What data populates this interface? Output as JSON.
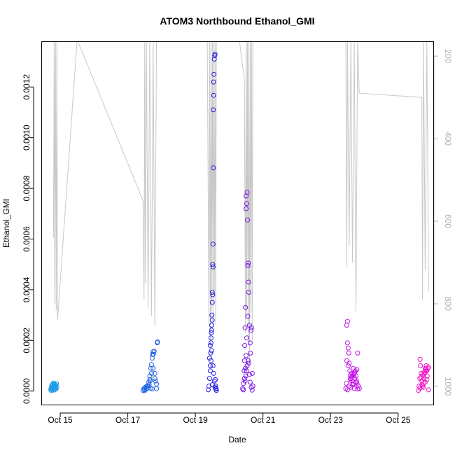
{
  "chart_data": {
    "type": "scatter",
    "title": "ATOM3 Northbound Ethanol_GMI",
    "xlabel": "Date",
    "ylabel": "Ethanol_GMI",
    "xlim": [
      14.45,
      26.05
    ],
    "ylim": [
      -5.47e-05,
      0.001379
    ],
    "y2lim": [
      1045,
      165
    ],
    "x_ticks": [
      15,
      17,
      19,
      21,
      23,
      25
    ],
    "x_tick_labels": [
      "Oct 15",
      "Oct 17",
      "Oct 19",
      "Oct 21",
      "Oct 23",
      "Oct 25"
    ],
    "y_ticks": [
      0,
      0.0002,
      0.0004,
      0.0006,
      0.0008,
      0.001,
      0.0012
    ],
    "y_tick_labels": [
      "0.0000",
      "0.0002",
      "0.0004",
      "0.0006",
      "0.0008",
      "0.0010",
      "0.0012"
    ],
    "y2_ticks": [
      200,
      400,
      600,
      800,
      1000
    ],
    "y2_tick_labels": [
      "200",
      "400",
      "600",
      "800",
      "1000"
    ],
    "colors": {
      "line": "#c8c8c8",
      "axis": "#000000",
      "right_axis": "#b0b0b0"
    },
    "pressure_trace": {
      "x": [
        14.8,
        14.82,
        14.84,
        14.86,
        14.88,
        14.9,
        14.92,
        15.5,
        17.45,
        17.48,
        17.5,
        17.52,
        17.55,
        17.6,
        17.65,
        17.7,
        17.75,
        17.8,
        17.85,
        19.35,
        19.4,
        19.42,
        19.44,
        19.46,
        19.48,
        19.5,
        19.52,
        19.54,
        19.56,
        19.58,
        19.6,
        19.62,
        20.3,
        20.45,
        20.48,
        20.5,
        20.52,
        20.54,
        20.56,
        20.58,
        20.6,
        20.62,
        20.64,
        20.66,
        20.68,
        20.7,
        23.45,
        23.48,
        23.5,
        23.55,
        23.6,
        23.65,
        23.7,
        23.75,
        23.8,
        23.85,
        25.7,
        25.72,
        25.75,
        25.8,
        25.85,
        25.9
      ],
      "y": [
        640,
        160,
        800,
        160,
        815,
        160,
        840,
        160,
        550,
        790,
        160,
        750,
        160,
        810,
        160,
        830,
        160,
        855,
        160,
        160,
        850,
        160,
        900,
        160,
        820,
        160,
        870,
        160,
        780,
        160,
        850,
        160,
        160,
        260,
        870,
        160,
        830,
        160,
        900,
        160,
        950,
        160,
        820,
        160,
        890,
        160,
        160,
        710,
        160,
        660,
        160,
        700,
        160,
        820,
        160,
        290,
        300,
        790,
        160,
        720,
        160,
        770
      ]
    },
    "series": [
      {
        "color": "#1e9be6",
        "x": [
          14.72,
          14.73,
          14.74,
          14.75,
          14.76,
          14.77,
          14.78,
          14.79,
          14.8,
          14.81,
          14.82,
          14.83,
          14.84,
          14.85,
          14.86,
          14.87,
          14.88,
          14.89,
          14.9,
          14.74,
          14.78,
          14.82,
          14.86,
          14.8,
          14.84
        ],
        "y": [
          5e-06,
          1e-05,
          1.5e-05,
          2e-05,
          8e-06,
          2.5e-05,
          1e-05,
          1.8e-05,
          3.2e-05,
          2.2e-05,
          1.2e-05,
          2.8e-05,
          6e-06,
          2e-05,
          1.5e-05,
          2.4e-05,
          9e-06,
          3e-05,
          1.8e-05,
          2e-06,
          2.7e-05,
          4e-06,
          1.1e-05,
          1.4e-05,
          2e-05
        ]
      },
      {
        "color": "#1f63e0",
        "x": [
          17.45,
          17.48,
          17.5,
          17.52,
          17.55,
          17.58,
          17.6,
          17.62,
          17.63,
          17.65,
          17.66,
          17.68,
          17.7,
          17.72,
          17.73,
          17.75,
          17.76,
          17.78,
          17.8,
          17.82,
          17.85,
          17.87,
          17.88,
          17.5,
          17.55,
          17.6,
          17.65,
          17.7,
          17.75,
          17.8,
          17.85,
          17.68,
          17.72
        ],
        "y": [
          3e-06,
          1e-05,
          6e-06,
          1.5e-05,
          8e-06,
          2e-05,
          1.2e-05,
          3.5e-05,
          2.5e-05,
          6e-05,
          4e-05,
          9e-05,
          0.000105,
          0.00013,
          0.000145,
          0.000155,
          0.000145,
          0.000157,
          7e-05,
          4e-05,
          2.8e-05,
          0.000191,
          0.000194,
          2e-06,
          1.8e-05,
          2e-05,
          4.5e-05,
          7e-05,
          9e-05,
          5e-05,
          1e-05,
          1.2e-05,
          8e-06
        ]
      },
      {
        "color": "#2a1fe0",
        "x": [
          19.38,
          19.4,
          19.42,
          19.44,
          19.45,
          19.46,
          19.47,
          19.48,
          19.49,
          19.5,
          19.5,
          19.51,
          19.51,
          19.52,
          19.52,
          19.53,
          19.53,
          19.54,
          19.54,
          19.55,
          19.56,
          19.57,
          19.58,
          19.59,
          19.6,
          19.61,
          19.62,
          19.42,
          19.44,
          19.46,
          19.48,
          19.5,
          19.52,
          19.54,
          19.56,
          19.58,
          19.6,
          19.44,
          19.46,
          19.48,
          19.5
        ],
        "y": [
          5e-06,
          2e-05,
          5e-05,
          0.0001,
          0.00015,
          0.00019,
          0.00023,
          0.00026,
          0.0003,
          0.00035,
          0.00039,
          0.00038,
          0.0005,
          0.00049,
          0.00058,
          0.000881,
          0.00111,
          0.001167,
          0.00122,
          0.00125,
          0.00131,
          0.001324,
          0.00133,
          4.5e-05,
          2e-05,
          8e-06,
          3e-06,
          0.00013,
          0.00018,
          0.00021,
          0.00024,
          0.00028,
          0.0001,
          7e-05,
          4e-05,
          1.5e-05,
          1e-05,
          8e-05,
          0.00012,
          0.00016,
          2.5e-05
        ]
      },
      {
        "color": "#7a14e6",
        "x": [
          20.4,
          20.42,
          20.44,
          20.45,
          20.46,
          20.47,
          20.48,
          20.5,
          20.5,
          20.52,
          20.53,
          20.54,
          20.55,
          20.56,
          20.57,
          20.58,
          20.6,
          20.62,
          20.63,
          20.65,
          20.66,
          20.68,
          20.7,
          20.42,
          20.45,
          20.48,
          20.5,
          20.52,
          20.55,
          20.58,
          20.6,
          20.62,
          20.65,
          20.68,
          20.47,
          20.49,
          20.51,
          20.53,
          20.56
        ],
        "y": [
          1e-05,
          3e-05,
          8e-05,
          0.00012,
          0.00018,
          0.00025,
          0.00033,
          0.00072,
          0.00077,
          0.00074,
          0.000785,
          0.000675,
          0.000495,
          0.000505,
          0.00043,
          0.00039,
          0.00026,
          0.00019,
          0.00015,
          0.00024,
          0.00025,
          7e-05,
          2e-05,
          5e-06,
          5e-05,
          9e-05,
          0.00014,
          0.00021,
          0.000295,
          0.00011,
          6.5e-05,
          3.5e-05,
          1.5e-05,
          4e-06,
          4e-05,
          6e-05,
          8e-05,
          0.0001,
          0.00012
        ]
      },
      {
        "color": "#c514e6",
        "x": [
          23.45,
          23.47,
          23.48,
          23.5,
          23.5,
          23.52,
          23.54,
          23.55,
          23.57,
          23.58,
          23.6,
          23.62,
          23.63,
          23.65,
          23.67,
          23.68,
          23.7,
          23.72,
          23.73,
          23.75,
          23.77,
          23.78,
          23.8,
          23.82,
          23.85,
          23.5,
          23.55,
          23.6,
          23.65,
          23.7,
          23.75,
          23.8,
          23.48,
          23.52,
          23.58,
          23.62,
          23.68,
          23.72,
          23.78
        ],
        "y": [
          1e-05,
          3e-05,
          0.00026,
          0.000275,
          0.00019,
          0.00017,
          0.00015,
          0.00011,
          8e-05,
          6e-05,
          5e-05,
          7e-05,
          4e-05,
          6e-05,
          9e-05,
          3e-05,
          7e-05,
          5e-05,
          8e-05,
          6e-05,
          4e-05,
          3e-05,
          0.00015,
          2e-05,
          1e-05,
          5e-06,
          2e-05,
          1.5e-05,
          2.5e-05,
          1e-05,
          3.5e-05,
          8e-06,
          0.00012,
          0.0001,
          4.5e-05,
          5.5e-05,
          6.5e-05,
          7.5e-05,
          8.5e-05
        ]
      },
      {
        "color": "#f014c4",
        "x": [
          25.6,
          25.62,
          25.64,
          25.65,
          25.66,
          25.68,
          25.7,
          25.72,
          25.74,
          25.75,
          25.76,
          25.78,
          25.8,
          25.82,
          25.83,
          25.85,
          25.86,
          25.88,
          25.9,
          25.65,
          25.7,
          25.75,
          25.8,
          25.85,
          25.9,
          25.68,
          25.72,
          25.78,
          25.82
        ],
        "y": [
          3e-06,
          2e-05,
          5e-05,
          0.000125,
          0.0001,
          7e-05,
          4e-05,
          2e-05,
          6e-05,
          3e-05,
          5e-05,
          7e-05,
          9e-05,
          8e-05,
          0.0001,
          8e-05,
          6e-05,
          9e-05,
          9.5e-05,
          1.2e-05,
          2.5e-05,
          1.5e-05,
          3.5e-05,
          4.5e-05,
          5e-06,
          5.5e-05,
          6.5e-05,
          7.5e-05,
          8.5e-05
        ]
      }
    ]
  }
}
